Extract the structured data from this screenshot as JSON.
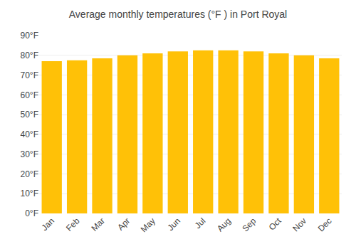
{
  "chart_data": {
    "type": "bar",
    "title": "Average monthly temperatures (°F ) in Port Royal",
    "categories": [
      "Jan",
      "Feb",
      "Mar",
      "Apr",
      "May",
      "Jun",
      "Jul",
      "Aug",
      "Sep",
      "Oct",
      "Nov",
      "Dec"
    ],
    "values": [
      77.0,
      77.5,
      78.5,
      80.0,
      81.0,
      82.0,
      82.5,
      82.5,
      82.0,
      81.0,
      80.0,
      78.5
    ],
    "color": "#FFC107",
    "ylim": [
      0,
      90
    ],
    "yticks": [
      {
        "value": 0,
        "label": "0°F"
      },
      {
        "value": 10,
        "label": "10°F"
      },
      {
        "value": 20,
        "label": "20°F"
      },
      {
        "value": 30,
        "label": "30°F"
      },
      {
        "value": 40,
        "label": "40°F"
      },
      {
        "value": 50,
        "label": "50°F"
      },
      {
        "value": 60,
        "label": "60°F"
      },
      {
        "value": 70,
        "label": "70°F"
      },
      {
        "value": 80,
        "label": "80°F"
      },
      {
        "value": 90,
        "label": "90°F"
      }
    ],
    "grid": true
  }
}
